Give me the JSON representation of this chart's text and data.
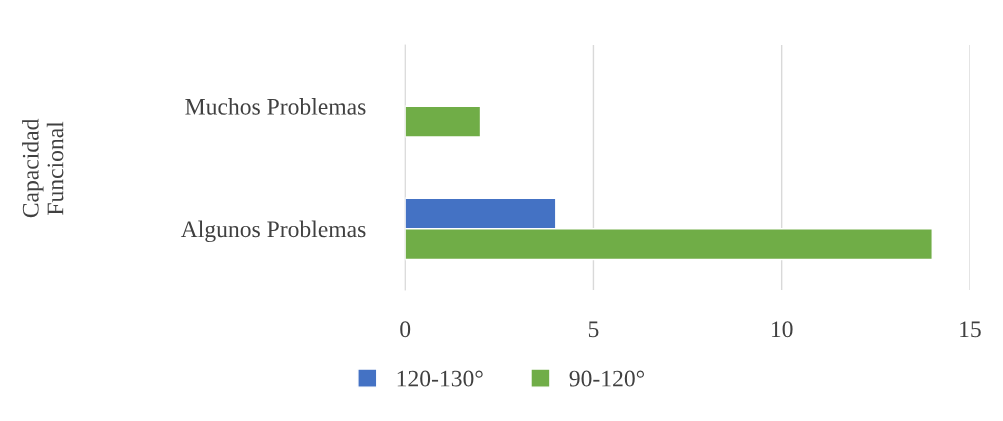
{
  "chart_data": {
    "type": "bar",
    "orientation": "horizontal",
    "ylabel": "Capacidad\nFuncional",
    "categories": [
      "Muchos Problemas",
      "Algunos Problemas"
    ],
    "series": [
      {
        "name": "120-130°",
        "color": "#4472c4",
        "values": [
          null,
          4
        ]
      },
      {
        "name": "90-120°",
        "color": "#70ad47",
        "values": [
          2,
          14
        ]
      }
    ],
    "xlim": [
      0,
      15
    ],
    "xticks": [
      0,
      5,
      10,
      15
    ],
    "grid": "x",
    "legend": "bottom"
  }
}
